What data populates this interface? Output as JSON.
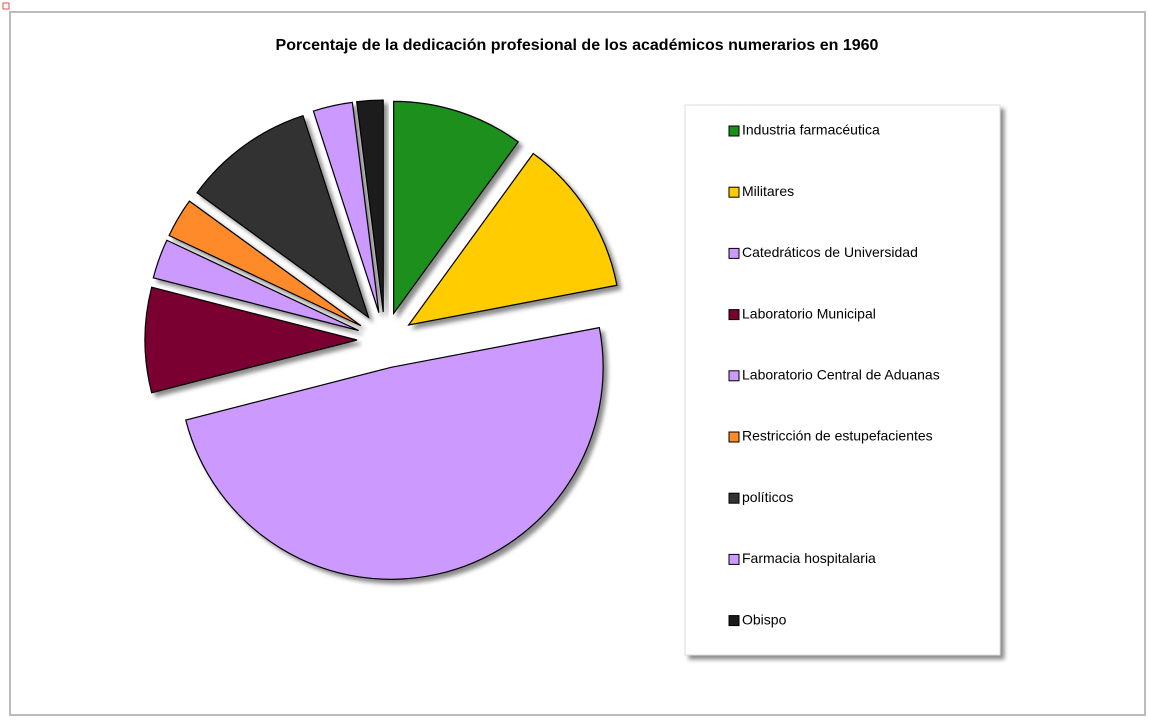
{
  "chart_data": {
    "type": "pie",
    "title": "Porcentaje de la dedicación profesional de los académicos numerarios en 1960",
    "categories": [
      "Industria farmacéutica",
      "Militares",
      "Catedráticos de Universidad",
      "Laboratorio Municipal",
      "Laboratorio Central de Aduanas",
      "Restricción de estupefacientes",
      "políticos",
      "Farmacia hospitalaria",
      "Obispo"
    ],
    "values": [
      10,
      12,
      49,
      8,
      3,
      3,
      10,
      3,
      2
    ],
    "colors": [
      "#1a8f1a",
      "#ffcc00",
      "#cc99ff",
      "#7a0030",
      "#cc99ff",
      "#ff8a2a",
      "#333333",
      "#cc99ff",
      "#1a1a1a"
    ],
    "legend": "right"
  }
}
